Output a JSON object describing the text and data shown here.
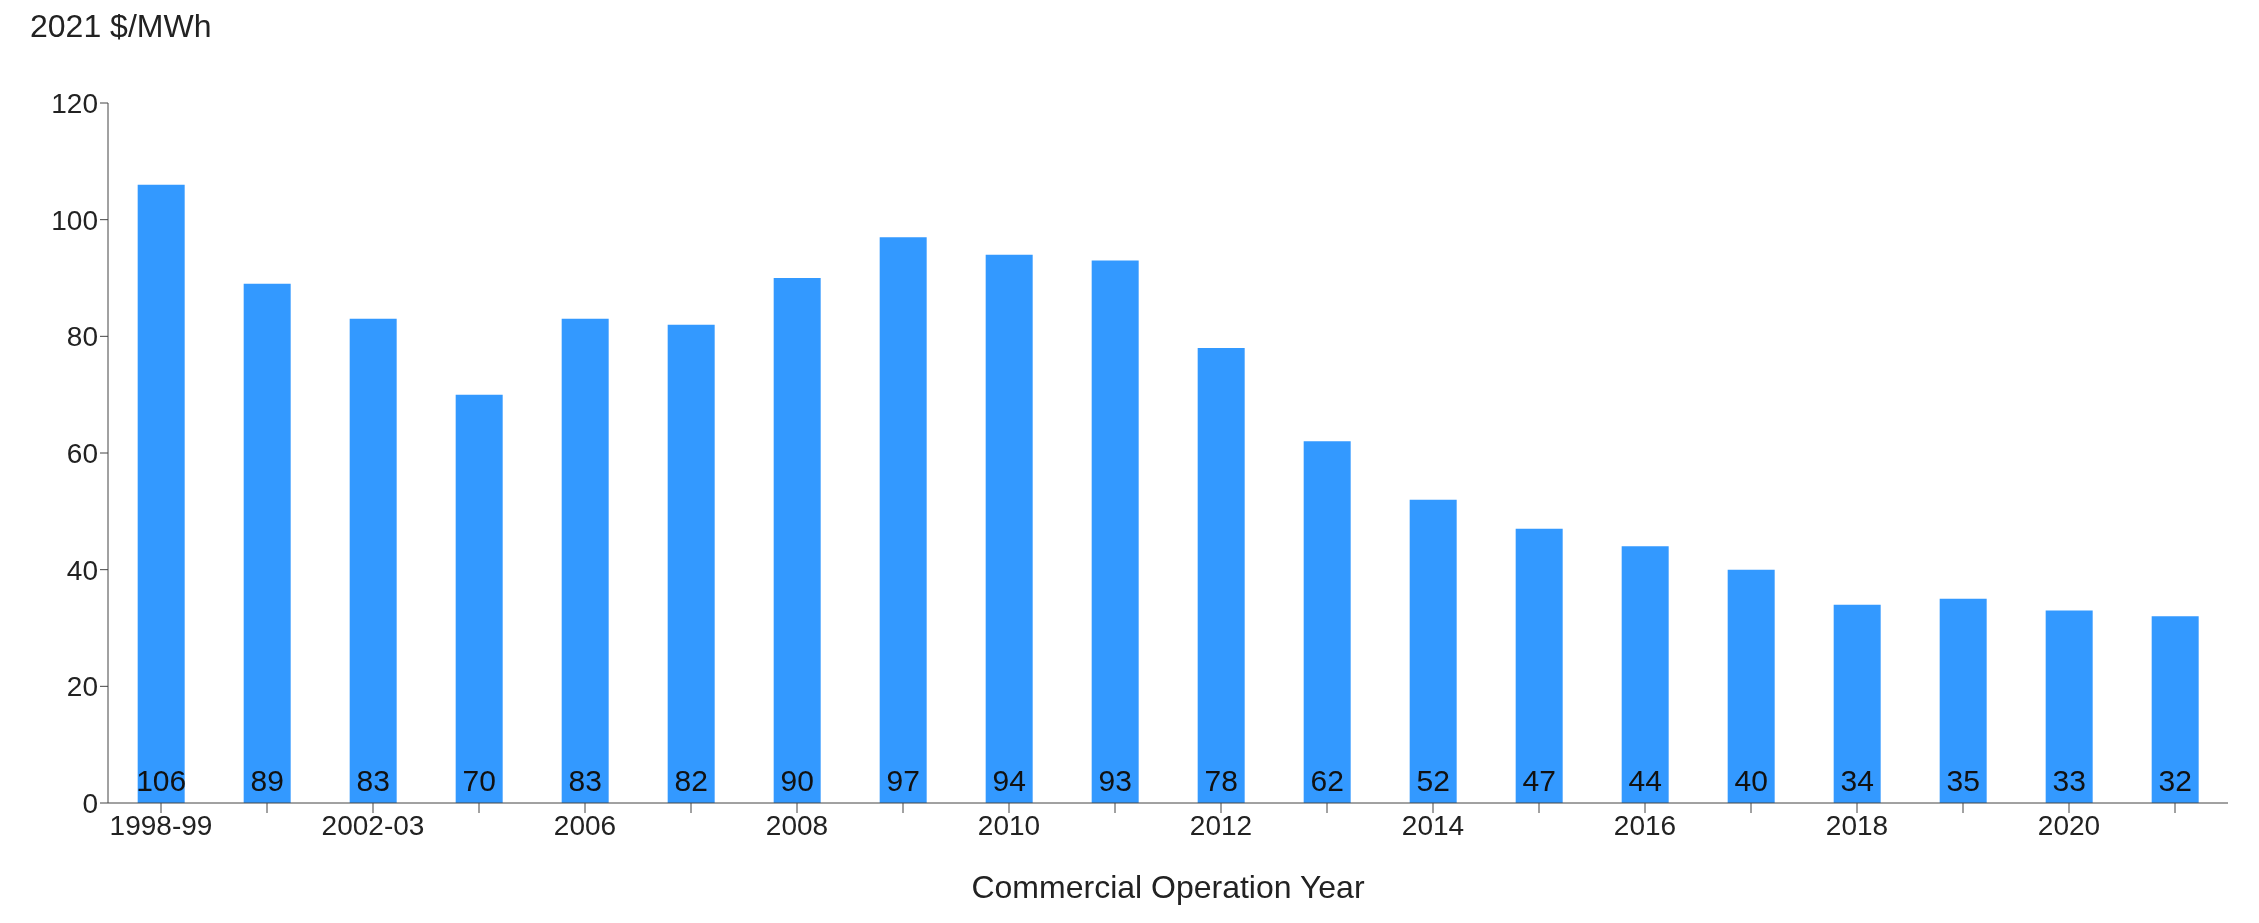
{
  "chart_data": {
    "type": "bar",
    "ylabel": "2021 $/MWh",
    "xlabel": "Commercial Operation Year",
    "categories": [
      "1998-99",
      null,
      "2002-03",
      null,
      "2006",
      null,
      "2008",
      null,
      "2010",
      null,
      "2012",
      null,
      "2014",
      null,
      "2016",
      null,
      "2018",
      null,
      "2020",
      null
    ],
    "values": [
      106,
      89,
      83,
      70,
      83,
      82,
      90,
      97,
      94,
      93,
      78,
      62,
      52,
      47,
      44,
      40,
      34,
      35,
      33,
      32
    ],
    "color": "#3399ff",
    "ylim": [
      0,
      120
    ],
    "yticks": [
      0,
      20,
      40,
      60,
      80,
      100,
      120
    ],
    "grid": false,
    "data_labels": true
  }
}
